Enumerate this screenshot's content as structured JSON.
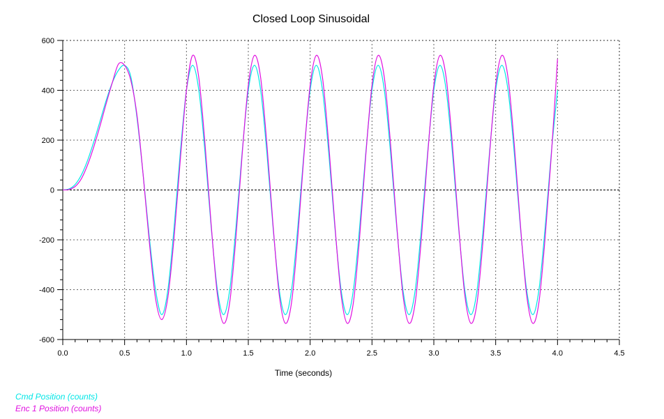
{
  "chart_data": {
    "type": "line",
    "title": "Closed Loop Sinusoidal",
    "xlabel": "Time (seconds)",
    "ylabel": "",
    "xlim": [
      0,
      4.5
    ],
    "ylim": [
      -600,
      600
    ],
    "x_ticks": [
      "0.0",
      "0.5",
      "1.0",
      "1.5",
      "2.0",
      "2.5",
      "3.0",
      "3.5",
      "4.0",
      "4.5"
    ],
    "y_ticks": [
      "600",
      "400",
      "200",
      "0",
      "-200",
      "-400",
      "-600"
    ],
    "grid": true,
    "legend_position": "bottom-left",
    "series": [
      {
        "name": "Cmd Position (counts)",
        "color": "#00e6e6",
        "x": [
          0,
          0.05,
          0.1,
          0.15,
          0.2,
          0.25,
          0.3,
          0.35,
          0.4,
          0.45,
          0.5,
          0.55,
          0.6,
          0.65,
          0.7,
          0.75,
          0.8,
          0.85,
          0.9,
          0.95,
          1.0,
          1.05,
          1.1,
          1.15,
          1.2,
          1.25,
          1.3,
          1.35,
          1.4,
          1.45,
          1.5,
          1.55,
          1.6,
          1.65,
          1.7,
          1.75,
          1.8,
          1.85,
          1.9,
          1.95,
          2.0,
          2.05,
          2.1,
          2.15,
          2.2,
          2.25,
          2.3,
          2.35,
          2.4,
          2.45,
          2.5,
          2.55,
          2.6,
          2.65,
          2.7,
          2.75,
          2.8,
          2.85,
          2.9,
          2.95,
          3.0,
          3.05,
          3.1,
          3.15,
          3.2,
          3.25,
          3.3,
          3.35,
          3.4,
          3.45,
          3.5,
          3.55,
          3.6,
          3.65,
          3.7,
          3.75,
          3.8,
          3.85,
          3.9,
          3.95,
          4.0
        ],
        "values": [
          0,
          4,
          22,
          60,
          118,
          192,
          274,
          358,
          430,
          480,
          500,
          455,
          290,
          60,
          -190,
          -400,
          -500,
          -400,
          -150,
          150,
          400,
          500,
          400,
          150,
          -150,
          -400,
          -500,
          -400,
          -150,
          150,
          400,
          500,
          400,
          150,
          -150,
          -400,
          -500,
          -400,
          -150,
          150,
          400,
          500,
          400,
          150,
          -150,
          -400,
          -500,
          -400,
          -150,
          150,
          400,
          500,
          400,
          150,
          -150,
          -400,
          -500,
          -400,
          -150,
          150,
          400,
          500,
          400,
          150,
          -150,
          -400,
          -500,
          -400,
          -150,
          150,
          400,
          500,
          400,
          150,
          -150,
          -400,
          -500,
          -400,
          -150,
          150,
          400
        ]
      },
      {
        "name": "Enc 1 Position (counts)",
        "color": "#e010e0",
        "x": [
          0,
          0.05,
          0.1,
          0.15,
          0.2,
          0.25,
          0.3,
          0.35,
          0.4,
          0.45,
          0.5,
          0.55,
          0.6,
          0.65,
          0.7,
          0.75,
          0.8,
          0.85,
          0.9,
          0.95,
          1.0,
          1.05,
          1.1,
          1.15,
          1.2,
          1.25,
          1.3,
          1.35,
          1.4,
          1.45,
          1.5,
          1.55,
          1.6,
          1.65,
          1.7,
          1.75,
          1.8,
          1.85,
          1.9,
          1.95,
          2.0,
          2.05,
          2.1,
          2.15,
          2.2,
          2.25,
          2.3,
          2.35,
          2.4,
          2.45,
          2.5,
          2.55,
          2.6,
          2.65,
          2.7,
          2.75,
          2.8,
          2.85,
          2.9,
          2.95,
          3.0,
          3.05,
          3.1,
          3.15,
          3.2,
          3.25,
          3.3,
          3.35,
          3.4,
          3.45,
          3.5,
          3.55,
          3.6,
          3.65,
          3.7,
          3.75,
          3.8,
          3.85,
          3.9,
          3.95,
          4.0
        ],
        "values": [
          0,
          2,
          14,
          45,
          100,
          172,
          255,
          345,
          430,
          505,
          500,
          440,
          300,
          60,
          -210,
          -435,
          -520,
          -430,
          -190,
          120,
          400,
          540,
          450,
          185,
          -140,
          -420,
          -535,
          -450,
          -190,
          140,
          420,
          540,
          450,
          185,
          -140,
          -420,
          -535,
          -450,
          -190,
          140,
          420,
          540,
          450,
          185,
          -140,
          -420,
          -535,
          -450,
          -190,
          140,
          420,
          540,
          450,
          185,
          -140,
          -420,
          -535,
          -450,
          -190,
          140,
          420,
          540,
          450,
          185,
          -140,
          -420,
          -535,
          -450,
          -190,
          140,
          420,
          540,
          450,
          185,
          -140,
          -420,
          -535,
          -450,
          -190,
          140,
          525
        ]
      }
    ]
  }
}
